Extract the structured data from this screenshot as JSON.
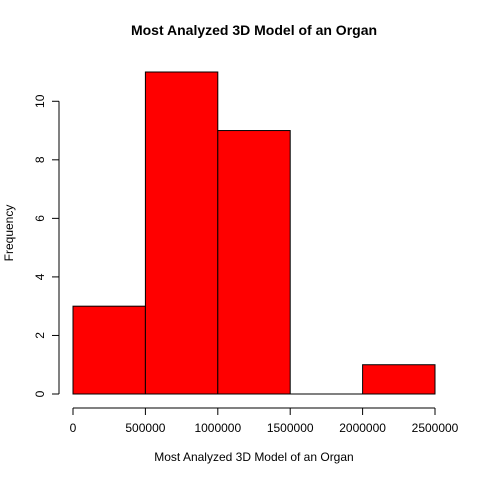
{
  "chart_data": {
    "type": "bar",
    "subtype": "histogram",
    "title": "Most Analyzed 3D Model of an Organ",
    "xlabel": "Most Analyzed 3D Model of an Organ",
    "ylabel": "Frequency",
    "bins": [
      {
        "start": 0,
        "end": 500000,
        "count": 3
      },
      {
        "start": 500000,
        "end": 1000000,
        "count": 11
      },
      {
        "start": 1000000,
        "end": 1500000,
        "count": 9
      },
      {
        "start": 1500000,
        "end": 2000000,
        "count": 0
      },
      {
        "start": 2000000,
        "end": 2500000,
        "count": 1
      }
    ],
    "xlim": [
      0,
      2500000
    ],
    "ylim": [
      0,
      11
    ],
    "x_ticks": [
      0,
      500000,
      1000000,
      1500000,
      2000000,
      2500000
    ],
    "x_tick_labels": [
      "0",
      "500000",
      "1000000",
      "1500000",
      "2000000",
      "2500000"
    ],
    "y_ticks": [
      0,
      2,
      4,
      6,
      8,
      10
    ],
    "y_tick_labels": [
      "0",
      "2",
      "4",
      "6",
      "8",
      "10"
    ],
    "bar_color": "#ff0000",
    "edge_color": "#000000",
    "grid": false
  }
}
